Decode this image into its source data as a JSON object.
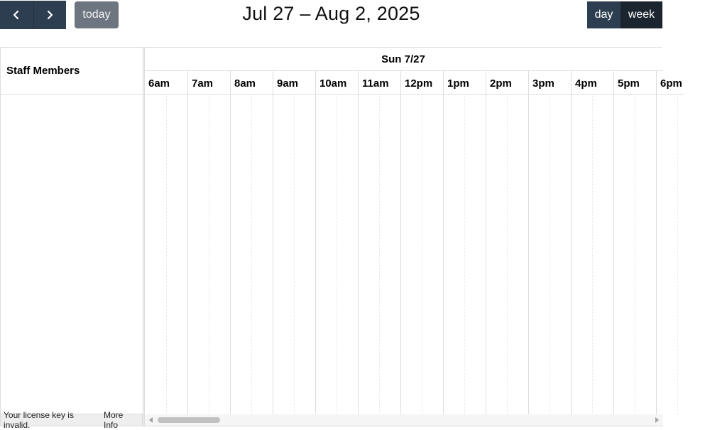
{
  "toolbar": {
    "prev_icon": "chevron-left-icon",
    "next_icon": "chevron-right-icon",
    "today_label": "today",
    "title": "Jul 27 – Aug 2, 2025",
    "view_day_label": "day",
    "view_week_label": "week",
    "active_view": "week"
  },
  "resource_area": {
    "header": "Staff Members"
  },
  "timeline": {
    "day_header": "Sun 7/27",
    "slots": [
      "6am",
      "7am",
      "8am",
      "9am",
      "10am",
      "11am",
      "12pm",
      "1pm",
      "2pm",
      "3pm",
      "4pm",
      "5pm",
      "6pm"
    ]
  },
  "footer": {
    "license_text": "Your license key is invalid.",
    "more_info_link": "More Info"
  },
  "colors": {
    "button_dark": "#2c3e50",
    "button_active": "#1a252f",
    "today_button": "#6c7580",
    "grid_border": "#dddddd"
  }
}
